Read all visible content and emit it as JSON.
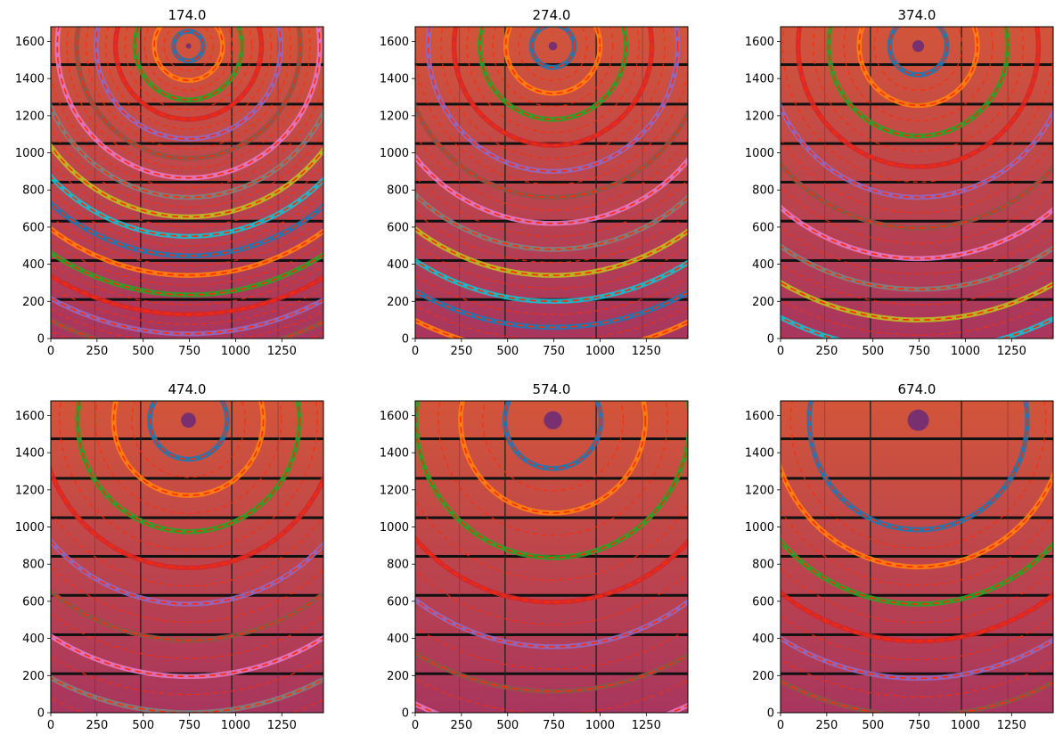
{
  "figure": {
    "layout": "2x3 grid of calibration-ring diffraction images"
  },
  "chart_data": [
    {
      "type": "heatmap",
      "title": "174.0",
      "xlim": [
        0,
        1475
      ],
      "ylim": [
        0,
        1679
      ],
      "xticks": [
        0,
        250,
        500,
        750,
        1000,
        1250
      ],
      "yticks": [
        0,
        200,
        400,
        600,
        800,
        1000,
        1200,
        1400,
        1600
      ],
      "beam_center": [
        745,
        1575
      ],
      "ring_step": 105,
      "ring_start": 80,
      "n_rings": 22
    },
    {
      "type": "heatmap",
      "title": "274.0",
      "xlim": [
        0,
        1475
      ],
      "ylim": [
        0,
        1679
      ],
      "xticks": [
        0,
        250,
        500,
        750,
        1000,
        1250
      ],
      "yticks": [
        0,
        200,
        400,
        600,
        800,
        1000,
        1200,
        1400,
        1600
      ],
      "beam_center": [
        745,
        1575
      ],
      "ring_step": 140,
      "ring_start": 115,
      "n_rings": 17
    },
    {
      "type": "heatmap",
      "title": "374.0",
      "xlim": [
        0,
        1475
      ],
      "ylim": [
        0,
        1679
      ],
      "xticks": [
        0,
        250,
        500,
        750,
        1000,
        1250
      ],
      "yticks": [
        0,
        200,
        400,
        600,
        800,
        1000,
        1200,
        1400,
        1600
      ],
      "beam_center": [
        745,
        1575
      ],
      "ring_step": 165,
      "ring_start": 155,
      "n_rings": 12
    },
    {
      "type": "heatmap",
      "title": "474.0",
      "xlim": [
        0,
        1475
      ],
      "ylim": [
        0,
        1679
      ],
      "xticks": [
        0,
        250,
        500,
        750,
        1000,
        1250
      ],
      "yticks": [
        0,
        200,
        400,
        600,
        800,
        1000,
        1200,
        1400,
        1600
      ],
      "beam_center": [
        745,
        1575
      ],
      "ring_step": 195,
      "ring_start": 210,
      "n_rings": 9
    },
    {
      "type": "heatmap",
      "title": "574.0",
      "xlim": [
        0,
        1475
      ],
      "ylim": [
        0,
        1679
      ],
      "xticks": [
        0,
        250,
        500,
        750,
        1000,
        1250
      ],
      "yticks": [
        0,
        200,
        400,
        600,
        800,
        1000,
        1200,
        1400,
        1600
      ],
      "beam_center": [
        745,
        1575
      ],
      "ring_step": 240,
      "ring_start": 260,
      "n_rings": 7
    },
    {
      "type": "heatmap",
      "title": "674.0",
      "xlim": [
        0,
        1475
      ],
      "ylim": [
        0,
        1679
      ],
      "xticks": [
        0,
        250,
        500,
        750,
        1000,
        1250
      ],
      "yticks": [
        0,
        200,
        400,
        600,
        800,
        1000,
        1200,
        1400,
        1600
      ],
      "beam_center": [
        745,
        1575
      ],
      "ring_step": 200,
      "ring_start": 590,
      "n_rings": 6
    }
  ],
  "colors": {
    "ring_palette": [
      "#1f77b4",
      "#ff7f0e",
      "#2ca02c",
      "#d62728",
      "#9467bd",
      "#8c564b",
      "#e377c2",
      "#7f7f7f",
      "#bcbd22",
      "#17becf"
    ],
    "fit_line": "#ff2a00",
    "detector_top": "#d2553a",
    "detector_bottom": "#a8365e",
    "beam_spot": "#6a2a7a"
  }
}
